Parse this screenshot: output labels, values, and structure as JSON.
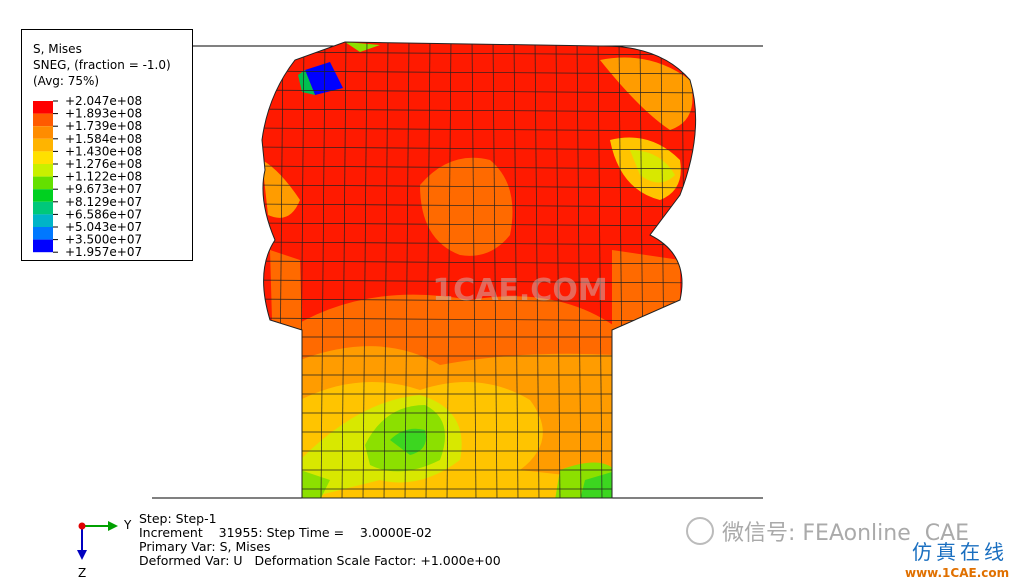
{
  "legend": {
    "title": [
      "S, Mises",
      "SNEG, (fraction = -1.0)",
      "(Avg: 75%)"
    ],
    "labels": [
      "+2.047e+08",
      "+1.893e+08",
      "+1.739e+08",
      "+1.584e+08",
      "+1.430e+08",
      "+1.276e+08",
      "+1.122e+08",
      "+9.673e+07",
      "+8.129e+07",
      "+6.586e+07",
      "+5.043e+07",
      "+3.500e+07",
      "+1.957e+07"
    ]
  },
  "info": {
    "lines": [
      "Step: Step-1",
      "Increment    31955: Step Time =    3.0000E-02",
      "Primary Var: S, Mises",
      "Deformed Var: U   Deformation Scale Factor: +1.000e+00"
    ]
  },
  "triad": {
    "y": "Y",
    "z": "Z"
  },
  "watermarks": {
    "center": "1CAE.COM",
    "wechat": "微信号: FEAonline  CAE",
    "brand": "仿真在线",
    "url": "www.1CAE.com"
  }
}
